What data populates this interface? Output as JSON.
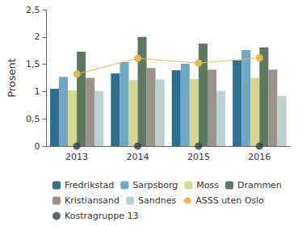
{
  "chart_data": {
    "type": "bar",
    "y_label": "Prosent",
    "categories": [
      "2013",
      "2014",
      "2015",
      "2016"
    ],
    "series": [
      {
        "name": "Fredrikstad",
        "type": "bar",
        "color": "#2f6f8f",
        "values": [
          1.05,
          1.33,
          1.39,
          1.57
        ]
      },
      {
        "name": "Sarpsborg",
        "type": "bar",
        "color": "#6ea8c6",
        "values": [
          1.27,
          1.54,
          1.51,
          1.76
        ]
      },
      {
        "name": "Moss",
        "type": "bar",
        "color": "#d6d68e",
        "values": [
          1.02,
          1.21,
          1.23,
          1.25
        ]
      },
      {
        "name": "Drammen",
        "type": "bar",
        "color": "#5b7b60",
        "values": [
          1.73,
          2.0,
          1.88,
          1.81
        ]
      },
      {
        "name": "Kristiansand",
        "type": "bar",
        "color": "#9c928a",
        "values": [
          1.25,
          1.43,
          1.4,
          1.4
        ]
      },
      {
        "name": "Sandnes",
        "type": "bar",
        "color": "#b9d1d1",
        "values": [
          1.01,
          1.22,
          1.01,
          0.92
        ]
      },
      {
        "name": "ASSS uten Oslo",
        "type": "line",
        "marker": "circle",
        "color": "#e8b84c",
        "values": [
          1.32,
          1.61,
          1.52,
          1.62
        ]
      },
      {
        "name": "Kostragruppe 13",
        "type": "scatter",
        "marker": "circle",
        "color": "#2f3f4a",
        "values": [
          0,
          0,
          0,
          0
        ]
      }
    ],
    "ylim": [
      0,
      2.5
    ],
    "yticks": [
      0,
      {
        "value": 0.5,
        "label": "0,5"
      },
      1,
      {
        "value": 1.5,
        "label": "1,5"
      },
      2,
      {
        "value": 2.5,
        "label": "2,5"
      }
    ],
    "grid": false,
    "legend": "bottom"
  }
}
